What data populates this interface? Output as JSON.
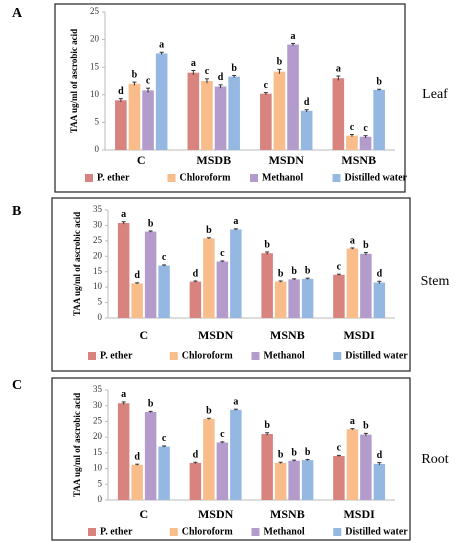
{
  "chart_data": [
    {
      "type": "bar",
      "panel": "A",
      "organ": "Leaf",
      "y_label": "TAA ug/ml of ascrobic acid",
      "categories": [
        "C",
        "MSDB",
        "MSDN",
        "MSNB"
      ],
      "ylim": [
        0,
        25
      ],
      "yticks": [
        0,
        5,
        10,
        15,
        20,
        25
      ],
      "series": [
        {
          "name": "P. ether",
          "color": "#d9837e",
          "values": [
            9,
            14,
            10.2,
            13
          ],
          "errors": [
            0.3,
            0.4,
            0.2,
            0.4
          ],
          "letters": [
            "d",
            "a",
            "c",
            "a"
          ]
        },
        {
          "name": "Chloroform",
          "color": "#f9bd8c",
          "values": [
            12,
            12.5,
            14.2,
            2.6
          ],
          "errors": [
            0.3,
            0.4,
            0.4,
            0.2
          ],
          "letters": [
            "b",
            "c",
            "b",
            "c"
          ]
        },
        {
          "name": "Methanol",
          "color": "#b39ccb",
          "values": [
            10.8,
            11.5,
            19.1,
            2.4
          ],
          "errors": [
            0.4,
            0.3,
            0.2,
            0.2
          ],
          "letters": [
            "c",
            "d",
            "a",
            "c"
          ]
        },
        {
          "name": "Distilled water",
          "color": "#95b8e3",
          "values": [
            17.5,
            13.3,
            7.1,
            10.9
          ],
          "errors": [
            0.2,
            0.2,
            0.2,
            0.1
          ],
          "letters": [
            "a",
            "b",
            "d",
            "b"
          ]
        }
      ]
    },
    {
      "type": "bar",
      "panel": "B",
      "organ": "Stem",
      "y_label": "TAA ug/ml of ascrobic acid",
      "categories": [
        "C",
        "MSDN",
        "MSNB",
        "MSDI"
      ],
      "ylim": [
        0,
        35
      ],
      "yticks": [
        0,
        5,
        10,
        15,
        20,
        25,
        30,
        35
      ],
      "series": [
        {
          "name": "P. ether",
          "color": "#d9837e",
          "values": [
            30.8,
            11.8,
            21,
            14
          ],
          "errors": [
            0.4,
            0.2,
            0.4,
            0.2
          ],
          "letters": [
            "a",
            "d",
            "b",
            "c"
          ]
        },
        {
          "name": "Chloroform",
          "color": "#f9bd8c",
          "values": [
            11.2,
            25.8,
            11.8,
            22.5
          ],
          "errors": [
            0.2,
            0.2,
            0.2,
            0.2
          ],
          "letters": [
            "d",
            "b",
            "b",
            "a"
          ]
        },
        {
          "name": "Methanol",
          "color": "#b39ccb",
          "values": [
            28,
            18.3,
            12.5,
            20.8
          ],
          "errors": [
            0.2,
            0.2,
            0.2,
            0.4
          ],
          "letters": [
            "b",
            "c",
            "b",
            "b"
          ]
        },
        {
          "name": "Distilled water",
          "color": "#95b8e3",
          "values": [
            17,
            28.7,
            12.7,
            11.5
          ],
          "errors": [
            0.2,
            0.2,
            0.2,
            0.4
          ],
          "letters": [
            "c",
            "a",
            "b",
            "d"
          ]
        }
      ]
    },
    {
      "type": "bar",
      "panel": "C",
      "organ": "Root",
      "y_label": "TAA ug/ml of ascrobic acid",
      "categories": [
        "C",
        "MSDN",
        "MSNB",
        "MSDI"
      ],
      "ylim": [
        0,
        35
      ],
      "yticks": [
        0,
        5,
        10,
        15,
        20,
        25,
        30,
        35
      ],
      "series": [
        {
          "name": "P. ether",
          "color": "#d9837e",
          "values": [
            30.8,
            11.8,
            21,
            14
          ],
          "errors": [
            0.4,
            0.2,
            0.4,
            0.2
          ],
          "letters": [
            "a",
            "d",
            "b",
            "c"
          ]
        },
        {
          "name": "Chloroform",
          "color": "#f9bd8c",
          "values": [
            11.2,
            25.8,
            11.8,
            22.5
          ],
          "errors": [
            0.2,
            0.2,
            0.2,
            0.2
          ],
          "letters": [
            "d",
            "b",
            "b",
            "a"
          ]
        },
        {
          "name": "Methanol",
          "color": "#b39ccb",
          "values": [
            28,
            18.3,
            12.5,
            20.8
          ],
          "errors": [
            0.2,
            0.2,
            0.2,
            0.4
          ],
          "letters": [
            "b",
            "c",
            "b",
            "b"
          ]
        },
        {
          "name": "Distilled water",
          "color": "#95b8e3",
          "values": [
            17,
            28.7,
            12.7,
            11.5
          ],
          "errors": [
            0.2,
            0.2,
            0.2,
            0.4
          ],
          "letters": [
            "c",
            "a",
            "b",
            "d"
          ]
        }
      ]
    }
  ]
}
